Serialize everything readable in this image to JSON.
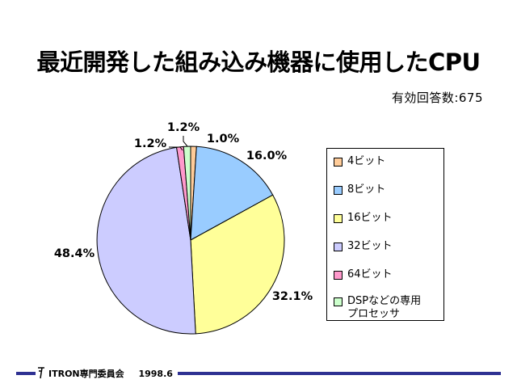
{
  "title": "最近開発した組み込み機器に使用したCPU",
  "respondents": "有効回答数:675",
  "chart_data": {
    "type": "pie",
    "title": "最近開発した組み込み機器に使用したCPU",
    "categories": [
      "4ビット",
      "8ビット",
      "16ビット",
      "32ビット",
      "64ビット",
      "DSPなどの専用\nプロセッサ"
    ],
    "values": [
      1.0,
      16.0,
      32.1,
      48.4,
      1.2,
      1.2
    ],
    "value_labels": [
      "1.0%",
      "16.0%",
      "32.1%",
      "48.4%",
      "1.2%",
      "1.2%"
    ],
    "colors": [
      "#ffcc99",
      "#99ccff",
      "#ffff99",
      "#ccccff",
      "#ff99cc",
      "#ccffcc"
    ],
    "legend_position": "right",
    "start": "12 o'clock, clockwise"
  },
  "footer": {
    "org": "ITRON専門委員会",
    "date": "1998.6"
  }
}
